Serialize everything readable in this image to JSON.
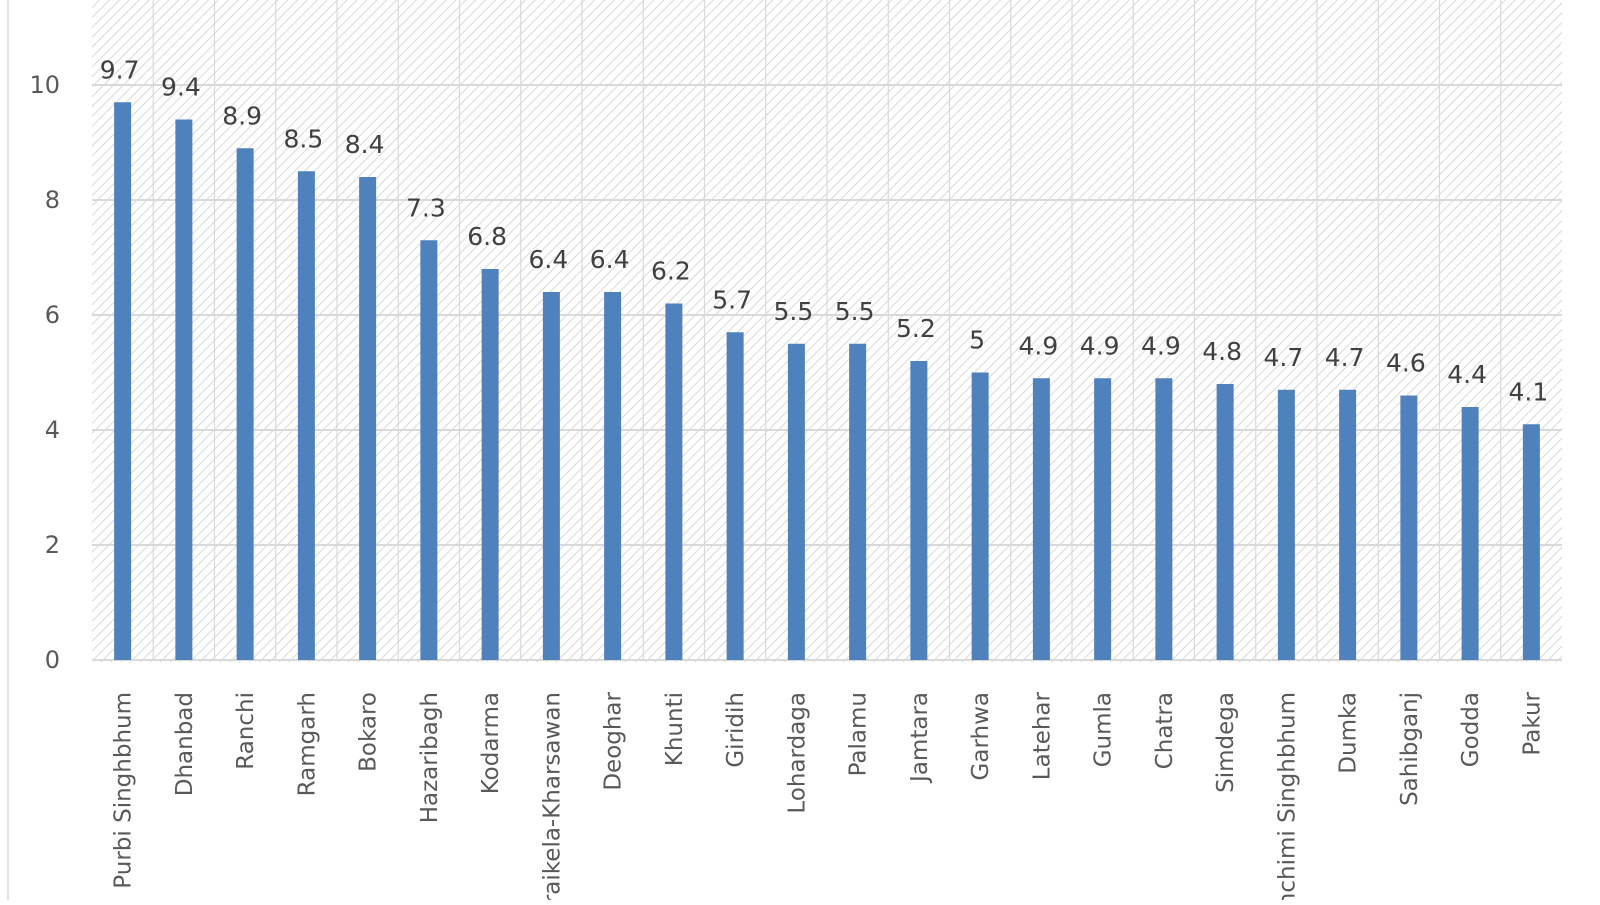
{
  "chart_data": {
    "type": "bar",
    "title": "",
    "xlabel": "",
    "ylabel": "",
    "categories": [
      "Purbi Singhbhum",
      "Dhanbad",
      "Ranchi",
      "Ramgarh",
      "Bokaro",
      "Hazaribagh",
      "Kodarma",
      "Saraikela-Kharsawan",
      "Deoghar",
      "Khunti",
      "Giridih",
      "Lohardaga",
      "Palamu",
      "Jamtara",
      "Garhwa",
      "Latehar",
      "Gumla",
      "Chatra",
      "Simdega",
      "Pashchimi Singhbhum",
      "Dumka",
      "Sahibganj",
      "Godda",
      "Pakur"
    ],
    "values": [
      9.7,
      9.4,
      8.9,
      8.5,
      8.4,
      7.3,
      6.8,
      6.4,
      6.4,
      6.2,
      5.7,
      5.5,
      5.5,
      5.2,
      5,
      4.9,
      4.9,
      4.9,
      4.8,
      4.7,
      4.7,
      4.6,
      4.4,
      4.1
    ],
    "data_labels": [
      "9.7",
      "9.4",
      "8.9",
      "8.5",
      "8.4",
      "7.3",
      "6.8",
      "6.4",
      "6.4",
      "6.2",
      "5.7",
      "5.5",
      "5.5",
      "5.2",
      "5",
      "4.9",
      "4.9",
      "4.9",
      "4.8",
      "4.7",
      "4.7",
      "4.6",
      "4.4",
      "4.1"
    ],
    "yticks": [
      "0",
      "2",
      "4",
      "6",
      "8",
      "10"
    ],
    "ylim": [
      0,
      11.4
    ],
    "grid": true,
    "legend": "none",
    "colors": {
      "bar": "#4f81bd",
      "hatch": "#cfcfcf",
      "grid": "#d9d9d9",
      "axis": "#d9d9d9"
    }
  }
}
